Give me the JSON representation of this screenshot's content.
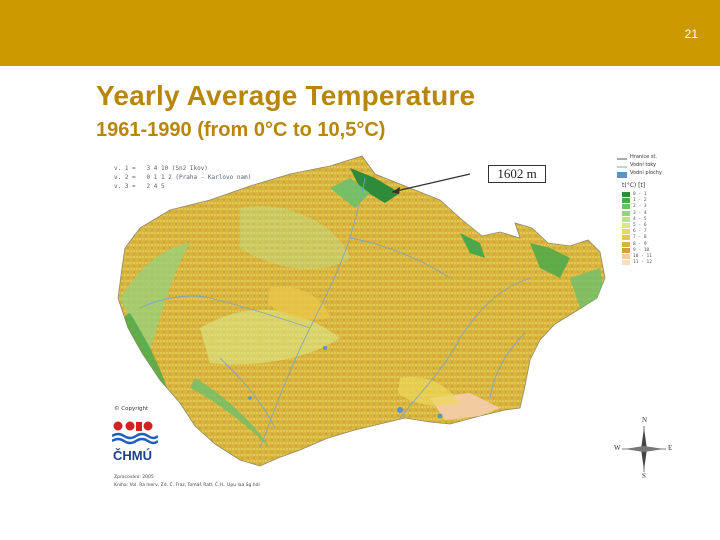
{
  "slide": {
    "number": "21",
    "title": "Yearly Average Temperature",
    "subtitle": "1961-1990 (from 0°C to 10,5°C)"
  },
  "map": {
    "stats": [
      "v. 1 =   3 4 10 (Sn2 Ikov)",
      "v. 2 =   0 1 1 2 (Praha - Karlovo nam)",
      "v. 3 =   2 4 5"
    ],
    "callout": "1602 m",
    "legend_items": [
      "Hranice st.",
      "Vodní toky",
      "Vodní plochy"
    ],
    "legend_title": "t(°C) [t]",
    "classes": [
      "0 - 1",
      "1 - 2",
      "2 - 3",
      "3 - 4",
      "4 - 5",
      "5 - 6",
      "6 - 7",
      "7 - 8",
      "8 - 9",
      "9 - 10",
      "10 - 11",
      "11 - 12"
    ],
    "class_colors": [
      "#2e8b3a",
      "#4aa84a",
      "#6cc06a",
      "#96d27d",
      "#bfe08a",
      "#dce787",
      "#ecd85a",
      "#e8c74a",
      "#d9b53f",
      "#cca536",
      "#f2cba0",
      "#f6dccb"
    ],
    "copyright": "© Copyright",
    "agency": "ČHMÚ",
    "credits": [
      "Zpracování: 2005",
      "Kniha: Vol. Ra lnerv, Zd. Č. Fraz, Tomáš Ratl, Č.H.. Upu laa Sg.hdi"
    ],
    "compass": {
      "n": "N",
      "s": "S",
      "e": "E",
      "w": "W"
    }
  }
}
